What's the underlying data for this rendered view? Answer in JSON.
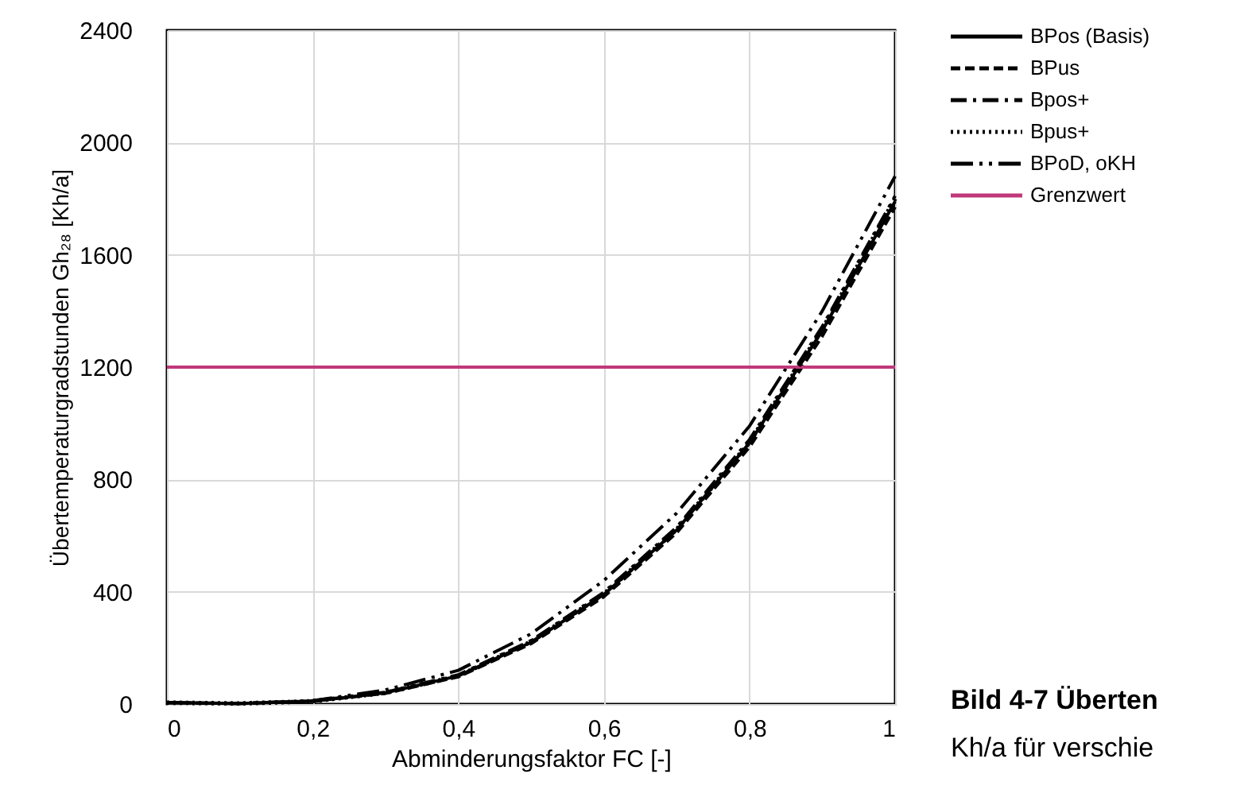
{
  "chart_data": {
    "type": "line",
    "xlabel": "Abminderungsfaktor FC [-]",
    "ylabel": "Übertemperaturgradstunden Gh₂₈ [Kh/a]",
    "xlim": [
      0,
      1
    ],
    "ylim": [
      0,
      2400
    ],
    "xticks": [
      0,
      {
        "value": 0.2,
        "label": "0,2"
      },
      {
        "value": 0.4,
        "label": "0,4"
      },
      {
        "value": 0.6,
        "label": "0,6"
      },
      {
        "value": 0.8,
        "label": "0,8"
      },
      1
    ],
    "yticks": [
      0,
      400,
      800,
      1200,
      1600,
      2000,
      2400
    ],
    "grid": true,
    "legend": "top right",
    "marker": "none",
    "x": [
      0,
      0.1,
      0.2,
      0.3,
      0.4,
      0.5,
      0.6,
      0.7,
      0.8,
      0.9,
      1.0
    ],
    "series": [
      {
        "name": "BPos (Basis)",
        "color": "#000000",
        "line_style": "solid",
        "values": [
          5,
          2,
          10,
          40,
          100,
          220,
          390,
          620,
          930,
          1330,
          1790
        ]
      },
      {
        "name": "BPus",
        "color": "#000000",
        "line_style": "dashed",
        "values": [
          5,
          2,
          10,
          38,
          97,
          215,
          382,
          610,
          915,
          1310,
          1770
        ]
      },
      {
        "name": "Bpos+",
        "color": "#000000",
        "line_style": "dashdot",
        "values": [
          5,
          2,
          11,
          42,
          104,
          226,
          398,
          630,
          942,
          1345,
          1810
        ]
      },
      {
        "name": "Bpus+",
        "color": "#000000",
        "line_style": "dotted",
        "values": [
          5,
          2,
          10,
          40,
          100,
          222,
          392,
          622,
          932,
          1335,
          1800
        ]
      },
      {
        "name": "BPoD, oKH",
        "color": "#000000",
        "line_style": "dashdotdot",
        "values": [
          5,
          2,
          12,
          50,
          120,
          250,
          440,
          680,
          990,
          1400,
          1880
        ]
      },
      {
        "name": "Grenzwert",
        "color": "#c0387a",
        "line_style": "solid",
        "x": [
          0,
          1
        ],
        "values": [
          1200,
          1200
        ]
      }
    ],
    "annotations": [
      "Bild 4-7 Überten",
      "Kh/a für verschie"
    ]
  }
}
